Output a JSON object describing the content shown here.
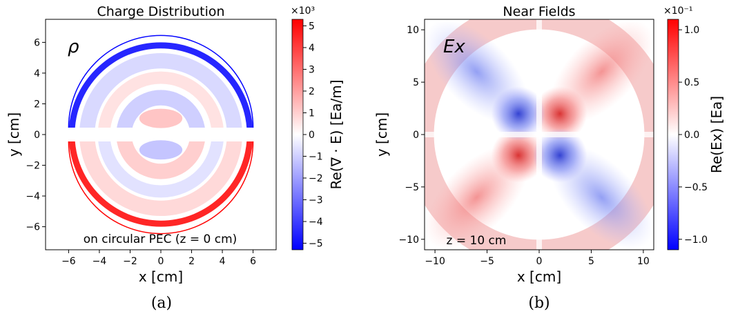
{
  "chart_data": [
    {
      "type": "heatmap",
      "panel_label": "(a)",
      "title": "Charge Distribution",
      "xlabel": "x [cm]",
      "ylabel": "y [cm]",
      "xlim": [
        -7.5,
        7.5
      ],
      "ylim": [
        -7.5,
        7.5
      ],
      "x_ticks": [
        -6,
        -4,
        -2,
        0,
        2,
        4,
        6
      ],
      "y_ticks": [
        -6,
        -4,
        -2,
        0,
        2,
        4,
        6
      ],
      "x_tick_labels": [
        "−6",
        "−4",
        "−2",
        "0",
        "2",
        "4",
        "6"
      ],
      "y_tick_labels": [
        "−6",
        "−4",
        "−2",
        "0",
        "2",
        "4",
        "6"
      ],
      "field_symbol": "ρ",
      "annotation": "on circular PEC (z = 0 cm)",
      "disk_radius": 6,
      "colorbar": {
        "label": "Re(∇ · E) [Ea/m]",
        "scale_label": "×10³",
        "range": [
          -5.3,
          5.3
        ],
        "ticks": [
          -5,
          -4,
          -3,
          -2,
          -1,
          0,
          1,
          2,
          3,
          4,
          5
        ],
        "tick_labels": [
          "−5",
          "−4",
          "−3",
          "−2",
          "−1",
          "0",
          "1",
          "2",
          "3",
          "4",
          "5"
        ],
        "colormap": "bwr",
        "low_color": "#0000ff",
        "mid_color": "#ffffff",
        "high_color": "#ff0000"
      },
      "rings": [
        {
          "r_inner": 5.6,
          "r_outer": 6.0,
          "upper_value": -4.5,
          "lower_value": 4.5
        },
        {
          "r_inner": 4.3,
          "r_outer": 5.3,
          "upper_value": -0.8,
          "lower_value": 0.8
        },
        {
          "r_inner": 3.3,
          "r_outer": 4.1,
          "upper_value": 0.6,
          "lower_value": -0.6
        },
        {
          "r_inner": 1.9,
          "r_outer": 2.9,
          "upper_value": -1.0,
          "lower_value": 1.0
        },
        {
          "r_inner": 0.0,
          "r_outer": 1.4,
          "upper_value": 1.2,
          "lower_value": -1.2
        }
      ]
    },
    {
      "type": "heatmap",
      "panel_label": "(b)",
      "title": "Near Fields",
      "xlabel": "x [cm]",
      "ylabel": "y [cm]",
      "xlim": [
        -11,
        11
      ],
      "ylim": [
        -11,
        11
      ],
      "x_ticks": [
        -10,
        -5,
        0,
        5,
        10
      ],
      "y_ticks": [
        -10,
        -5,
        0,
        5,
        10
      ],
      "x_tick_labels": [
        "−10",
        "−5",
        "0",
        "5",
        "10"
      ],
      "y_tick_labels": [
        "−10",
        "−5",
        "0",
        "5",
        "10"
      ],
      "field_symbol": "Ex",
      "annotation": "z = 10 cm",
      "colorbar": {
        "label": "Re(Ex) [Ea]",
        "scale_label": "×10⁻¹",
        "range": [
          -1.1,
          1.1
        ],
        "ticks": [
          -1.0,
          -0.5,
          0.0,
          0.5,
          1.0
        ],
        "tick_labels": [
          "−1.0",
          "−0.5",
          "0.0",
          "0.5",
          "1.0"
        ],
        "colormap": "bwr",
        "low_color": "#0000ff",
        "mid_color": "#ffffff",
        "high_color": "#ff0000"
      },
      "lobes": [
        {
          "x": 2,
          "y": 2,
          "value": 0.9
        },
        {
          "x": -2,
          "y": -2,
          "value": 0.9
        },
        {
          "x": -2,
          "y": 2,
          "value": -0.9
        },
        {
          "x": 2,
          "y": -2,
          "value": -0.9
        },
        {
          "x": 6,
          "y": 6,
          "value": 0.35
        },
        {
          "x": -6,
          "y": -6,
          "value": 0.35
        },
        {
          "x": -6,
          "y": 6,
          "value": -0.35
        },
        {
          "x": 6,
          "y": -6,
          "value": -0.35
        }
      ]
    }
  ]
}
